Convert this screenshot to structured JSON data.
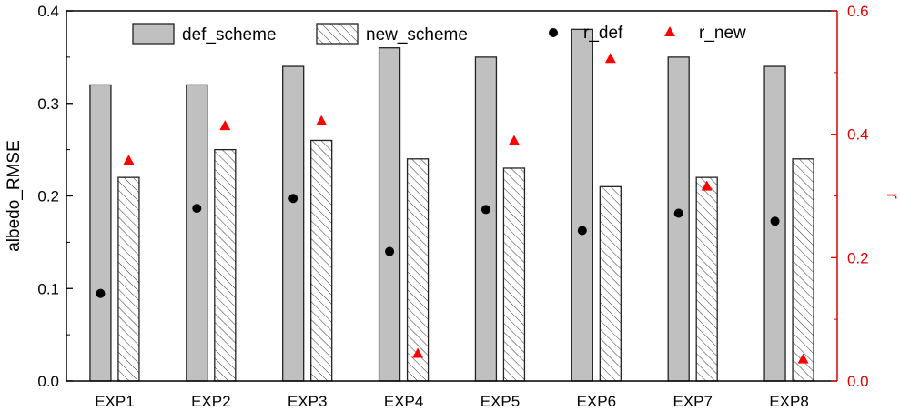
{
  "chart_data": {
    "type": "bar",
    "categories": [
      "EXP1",
      "EXP2",
      "EXP3",
      "EXP4",
      "EXP5",
      "EXP6",
      "EXP7",
      "EXP8"
    ],
    "series": [
      {
        "name": "def_scheme",
        "axis": "left",
        "kind": "bar",
        "fill": "solid-gray",
        "values": [
          0.32,
          0.32,
          0.34,
          0.36,
          0.35,
          0.38,
          0.35,
          0.34
        ]
      },
      {
        "name": "new_scheme",
        "axis": "left",
        "kind": "bar",
        "fill": "hatched",
        "values": [
          0.22,
          0.25,
          0.26,
          0.24,
          0.23,
          0.21,
          0.22,
          0.24
        ]
      },
      {
        "name": "r_def",
        "axis": "right",
        "kind": "marker",
        "marker": "circle",
        "values": [
          0.142,
          0.28,
          0.296,
          0.21,
          0.278,
          0.244,
          0.272,
          0.259
        ]
      },
      {
        "name": "r_new",
        "axis": "right",
        "kind": "marker",
        "marker": "triangle",
        "values": [
          0.358,
          0.414,
          0.422,
          0.045,
          0.39,
          0.523,
          0.316,
          0.036
        ]
      }
    ],
    "ylabel": "albedo_RMSE",
    "ylabel_right": "r",
    "ylim": [
      0,
      0.4
    ],
    "ylim_right": [
      0,
      0.6
    ],
    "yticks": [
      "0.0",
      "0.1",
      "0.2",
      "0.3",
      "0.4"
    ],
    "yticks_right": [
      "0.0",
      "0.2",
      "0.4",
      "0.6"
    ],
    "grid": false,
    "legend_position": "top",
    "colors": {
      "bar_fill": "#c0c0c0",
      "bar_edge": "#222222",
      "r_def": "#000000",
      "r_new": "#ff0000",
      "right_axis": "#e00000"
    }
  }
}
